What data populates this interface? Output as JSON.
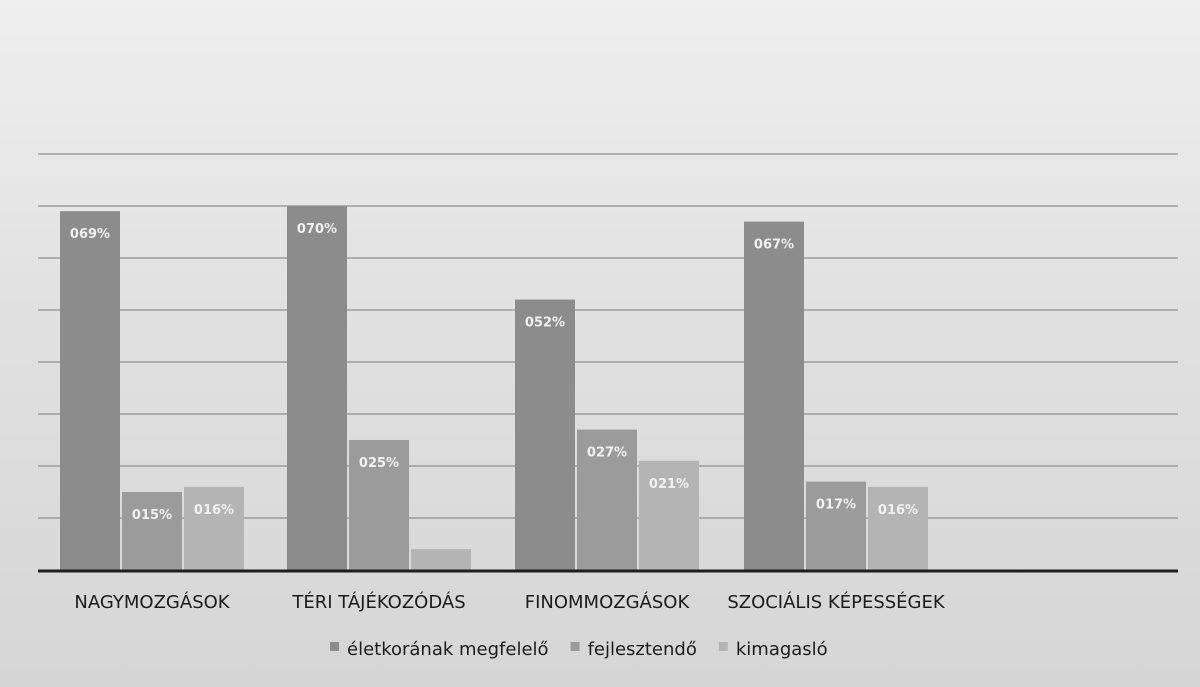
{
  "chart_data": {
    "type": "bar",
    "categories": [
      "NAGYMOZGÁSOK",
      "TÉRI TÁJÉKOZÓDÁS",
      "FINOMMOZGÁSOK",
      "SZOCIÁLIS KÉPESSÉGEK"
    ],
    "series": [
      {
        "name": "életkorának megfelelő",
        "values": [
          69,
          70,
          52,
          67
        ],
        "labels": [
          "069%",
          "070%",
          "052%",
          "067%"
        ],
        "color": "#8c8c8c"
      },
      {
        "name": "fejlesztendő",
        "values": [
          15,
          25,
          27,
          17
        ],
        "labels": [
          "015%",
          "025%",
          "027%",
          "017%"
        ],
        "color": "#9b9b9b"
      },
      {
        "name": "kimagasló",
        "values": [
          16,
          4,
          21,
          16
        ],
        "labels": [
          "016%",
          "",
          "021%",
          "016%"
        ],
        "color": "#b4b4b4"
      }
    ],
    "ylim": [
      0,
      80
    ],
    "grid": true,
    "legend": "bottom",
    "title": "",
    "xlabel": "",
    "ylabel": ""
  }
}
